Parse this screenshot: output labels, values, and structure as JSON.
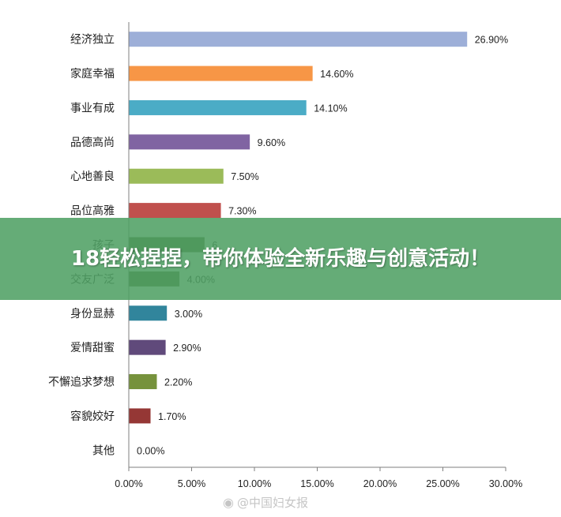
{
  "chart_data": {
    "type": "bar",
    "orientation": "horizontal",
    "categories": [
      "经济独立",
      "家庭幸福",
      "事业有成",
      "品德高尚",
      "心地善良",
      "品位高雅",
      "孩子",
      "交友广泛",
      "身份显赫",
      "爱情甜蜜",
      "不懈追求梦想",
      "容貌姣好",
      "其他"
    ],
    "values": [
      26.9,
      14.6,
      14.1,
      9.6,
      7.5,
      7.3,
      6.0,
      4.0,
      3.0,
      2.9,
      2.2,
      1.7,
      0.0
    ],
    "value_labels": [
      "26.90%",
      "14.60%",
      "14.10%",
      "9.60%",
      "7.50%",
      "7.30%",
      "6",
      "4.00%",
      "3.00%",
      "2.90%",
      "2.20%",
      "1.70%",
      "0.00%"
    ],
    "colors": [
      "#9DAFD8",
      "#F79646",
      "#4BACC6",
      "#8064A2",
      "#9BBB59",
      "#C0504D",
      "#4F6228",
      "#4F6228",
      "#31859C",
      "#604A7B",
      "#76923C",
      "#953735",
      "#888888"
    ],
    "xlim": [
      0,
      30
    ],
    "xticks": [
      "0.00%",
      "5.00%",
      "10.00%",
      "15.00%",
      "20.00%",
      "25.00%",
      "30.00%"
    ],
    "grid": false
  },
  "banner": {
    "text": "18轻松捏捏，带你体验全新乐趣与创意活动！"
  },
  "watermark": {
    "icon": "weibo-icon",
    "text": "@中国妇女报"
  }
}
